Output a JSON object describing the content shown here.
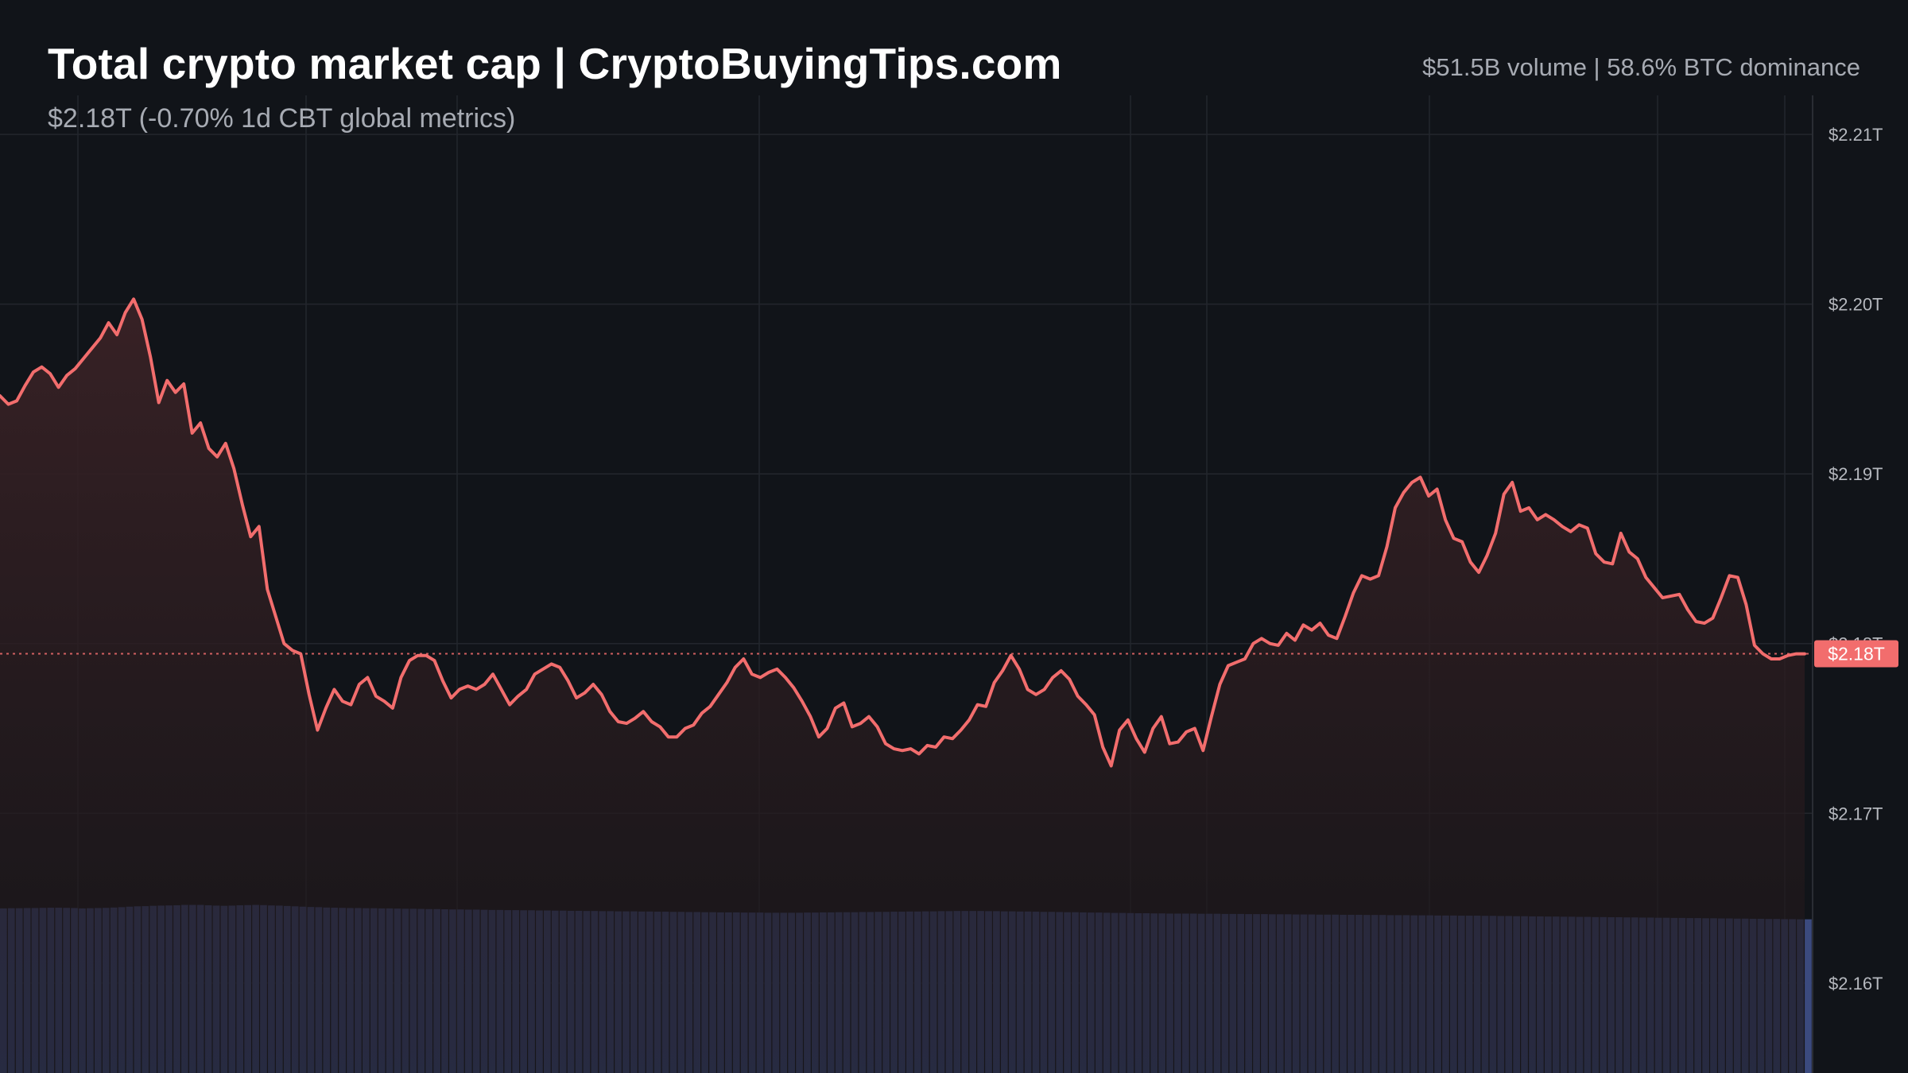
{
  "header": {
    "title": "Total crypto market cap | CryptoBuyingTips.com",
    "subtitle": "$2.18T (-0.70% 1d CBT global metrics)",
    "stats": "$51.5B volume | 58.6% BTC dominance"
  },
  "colors": {
    "background": "#111419",
    "line": "#f26d6d",
    "area_top": "#3a2226",
    "grid": "#23262d",
    "volume": "#3b4a7e",
    "price_tag": "#f26d6d"
  },
  "chart_data": {
    "type": "line",
    "title": "Total crypto market cap | CryptoBuyingTips.com",
    "subtitle": "$2.18T (-0.70% 1d CBT global metrics)",
    "y_axis_side": "right",
    "ylim": [
      2.1547,
      2.2123
    ],
    "y_ticks": [
      2.16,
      2.17,
      2.18,
      2.19,
      2.2,
      2.21
    ],
    "y_tick_labels": [
      "$2.16T",
      "$2.17T",
      "$2.18T",
      "$2.19T",
      "$2.20T",
      "$2.21T"
    ],
    "last_value_label": "$2.18T",
    "last_value": 2.1794,
    "grid": true,
    "series": [
      {
        "values": [
          2.1946,
          2.1941,
          2.1943,
          2.1952,
          2.196,
          2.1963,
          2.1959,
          2.1951,
          2.1958,
          2.1962,
          2.1968,
          2.1974,
          2.198,
          2.1989,
          2.1982,
          2.1995,
          2.2003,
          2.1991,
          2.1969,
          2.1942,
          2.1955,
          2.1948,
          2.1953,
          2.1924,
          2.193,
          2.1915,
          2.191,
          2.1918,
          2.1903,
          2.1882,
          2.1863,
          2.1869,
          2.1832,
          2.1816,
          2.18,
          2.1796,
          2.1794,
          2.177,
          2.1749,
          2.1762,
          2.1773,
          2.1766,
          2.1764,
          2.1776,
          2.178,
          2.1769,
          2.1766,
          2.1762,
          2.178,
          2.179,
          2.1793,
          2.1793,
          2.179,
          2.1778,
          2.1768,
          2.1773,
          2.1775,
          2.1773,
          2.1776,
          2.1782,
          2.1773,
          2.1764,
          2.1769,
          2.1773,
          2.1782,
          2.1785,
          2.1788,
          2.1786,
          2.1778,
          2.1768,
          2.1771,
          2.1776,
          2.177,
          2.176,
          2.1754,
          2.1753,
          2.1756,
          2.176,
          2.1754,
          2.1751,
          2.1745,
          2.1745,
          2.175,
          2.1752,
          2.1759,
          2.1763,
          2.177,
          2.1777,
          2.1786,
          2.1791,
          2.1782,
          2.178,
          2.1783,
          2.1785,
          2.178,
          2.1774,
          2.1766,
          2.1757,
          2.1745,
          2.175,
          2.1762,
          2.1765,
          2.1751,
          2.1753,
          2.1757,
          2.1751,
          2.1741,
          2.1738,
          2.1737,
          2.1738,
          2.1735,
          2.174,
          2.1739,
          2.1745,
          2.1744,
          2.1749,
          2.1755,
          2.1764,
          2.1763,
          2.1777,
          2.1784,
          2.1793,
          2.1785,
          2.1773,
          2.177,
          2.1773,
          2.178,
          2.1784,
          2.1779,
          2.1769,
          2.1764,
          2.1758,
          2.1739,
          2.1728,
          2.1749,
          2.1755,
          2.1744,
          2.1736,
          2.175,
          2.1757,
          2.1741,
          2.1742,
          2.1748,
          2.175,
          2.1737,
          2.1757,
          2.1776,
          2.1787,
          2.1789,
          2.1791,
          2.18,
          2.1803,
          2.18,
          2.1799,
          2.1806,
          2.1802,
          2.1811,
          2.1808,
          2.1812,
          2.1805,
          2.1803,
          2.1816,
          2.183,
          2.184,
          2.1838,
          2.184,
          2.1857,
          2.188,
          2.1889,
          2.1895,
          2.1898,
          2.1887,
          2.1891,
          2.1873,
          2.1862,
          2.186,
          2.1848,
          2.1842,
          2.1852,
          2.1865,
          2.1888,
          2.1895,
          2.1878,
          2.188,
          2.1873,
          2.1876,
          2.1873,
          2.1869,
          2.1866,
          2.187,
          2.1868,
          2.1853,
          2.1848,
          2.1847,
          2.1865,
          2.1854,
          2.185,
          2.1839,
          2.1833,
          2.1827,
          2.1828,
          2.1829,
          2.182,
          2.1813,
          2.1812,
          2.1815,
          2.1827,
          2.184,
          2.1839,
          2.1823,
          2.1799,
          2.1794,
          2.1791,
          2.1791,
          2.1793,
          2.1794,
          2.1794
        ]
      }
    ],
    "volume": [
      0.95,
      0.951,
      0.951,
      0.952,
      0.952,
      0.953,
      0.954,
      0.954,
      0.953,
      0.952,
      0.95,
      0.951,
      0.952,
      0.953,
      0.955,
      0.957,
      0.96,
      0.962,
      0.963,
      0.965,
      0.966,
      0.967,
      0.968,
      0.97,
      0.97,
      0.97,
      0.968,
      0.966,
      0.965,
      0.966,
      0.968,
      0.969,
      0.97,
      0.969,
      0.967,
      0.966,
      0.964,
      0.962,
      0.96,
      0.958,
      0.957,
      0.955,
      0.954,
      0.953,
      0.952,
      0.952,
      0.951,
      0.951,
      0.95,
      0.95,
      0.949,
      0.948,
      0.948,
      0.947,
      0.946,
      0.946,
      0.945,
      0.944,
      0.944,
      0.943,
      0.943,
      0.942,
      0.941,
      0.941,
      0.94,
      0.94,
      0.939,
      0.939,
      0.938,
      0.938,
      0.937,
      0.937,
      0.936,
      0.936,
      0.935,
      0.935,
      0.934,
      0.934,
      0.933,
      0.933,
      0.933,
      0.932,
      0.932,
      0.931,
      0.931,
      0.93,
      0.93,
      0.929,
      0.929,
      0.928,
      0.928,
      0.927,
      0.927,
      0.927,
      0.926,
      0.926,
      0.926,
      0.925,
      0.925,
      0.925,
      0.925,
      0.925,
      0.926,
      0.926,
      0.927,
      0.927,
      0.928,
      0.928,
      0.928,
      0.929,
      0.929,
      0.93,
      0.93,
      0.931,
      0.931,
      0.932,
      0.932,
      0.933,
      0.933,
      0.934,
      0.934,
      0.935,
      0.935,
      0.935,
      0.935,
      0.934,
      0.934,
      0.933,
      0.933,
      0.932,
      0.932,
      0.931,
      0.93,
      0.93,
      0.929,
      0.928,
      0.928,
      0.927,
      0.926,
      0.926,
      0.925,
      0.924,
      0.924,
      0.923,
      0.922,
      0.922,
      0.921,
      0.921,
      0.92,
      0.92,
      0.92,
      0.92,
      0.919,
      0.919,
      0.919,
      0.918,
      0.918,
      0.918,
      0.917,
      0.917,
      0.917,
      0.916,
      0.916,
      0.916,
      0.915,
      0.915,
      0.915,
      0.914,
      0.914,
      0.914,
      0.913,
      0.913,
      0.913,
      0.912,
      0.912,
      0.912,
      0.911,
      0.911,
      0.911,
      0.91,
      0.91,
      0.91,
      0.909,
      0.909,
      0.909,
      0.908,
      0.908,
      0.908,
      0.907,
      0.907,
      0.906,
      0.906,
      0.905,
      0.905,
      0.904,
      0.904,
      0.903,
      0.903,
      0.902,
      0.902,
      0.901,
      0.901,
      0.9,
      0.9,
      0.899,
      0.899,
      0.898,
      0.898,
      0.897,
      0.897,
      0.896,
      0.896,
      0.895,
      0.895,
      0.894,
      0.894,
      0.893,
      0.893,
      0.892,
      0.892,
      0.891,
      0.891,
      0.89,
      0.89,
      0.889,
      0.889,
      0.888,
      0.888,
      0.887,
      0.887
    ]
  }
}
